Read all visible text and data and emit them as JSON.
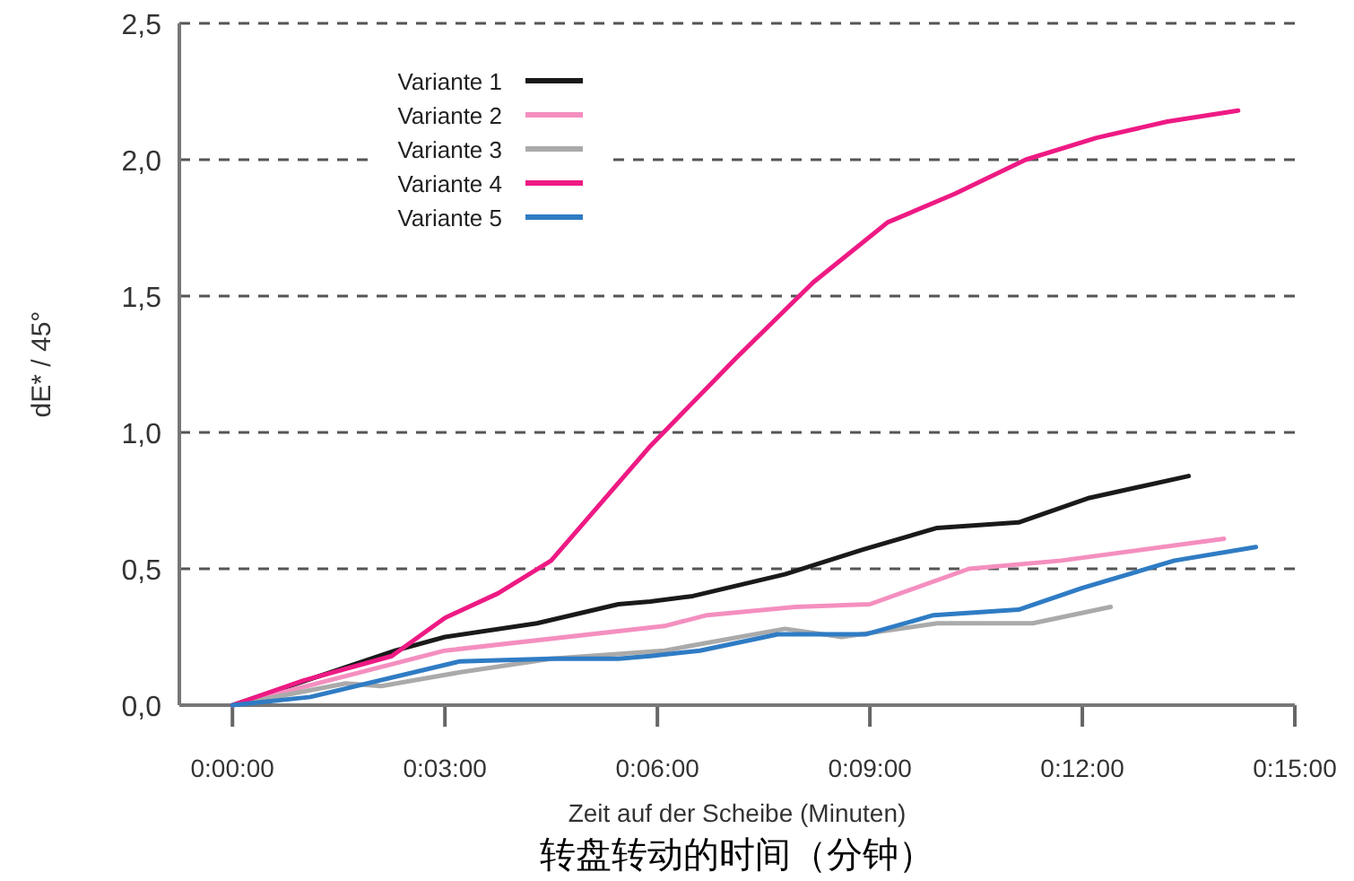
{
  "chart_data": {
    "type": "line",
    "xlabel": "Zeit auf der Scheibe (Minuten)",
    "ylabel": "dE* / 45°",
    "annotations": [
      "转盘转动的时间（分钟）"
    ],
    "xlim": [
      -0.75,
      15
    ],
    "ylim": [
      0,
      2.5
    ],
    "xticks": [
      {
        "value": 0,
        "label": "0:00:00"
      },
      {
        "value": 3,
        "label": "0:03:00"
      },
      {
        "value": 6,
        "label": "0:06:00"
      },
      {
        "value": 9,
        "label": "0:09:00"
      },
      {
        "value": 12,
        "label": "0:12:00"
      },
      {
        "value": 15,
        "label": "0:15:00"
      }
    ],
    "yticks": [
      {
        "value": 0,
        "label": "0,0"
      },
      {
        "value": 0.5,
        "label": "0,5"
      },
      {
        "value": 1,
        "label": "1,0"
      },
      {
        "value": 1.5,
        "label": "1,5"
      },
      {
        "value": 2,
        "label": "2,0"
      },
      {
        "value": 2.5,
        "label": "2,5"
      }
    ],
    "grid": "y",
    "legend": "top left",
    "marker": "none",
    "line_style": "solid",
    "series": [
      {
        "name": "Variante 1",
        "color": "#1a1a1a",
        "x": [
          0,
          2.3,
          3.0,
          4.3,
          5.45,
          5.9,
          6.5,
          7.8,
          8.9,
          9.95,
          11.1,
          12.1,
          13.5
        ],
        "values": [
          0,
          0.2,
          0.25,
          0.3,
          0.37,
          0.38,
          0.4,
          0.48,
          0.57,
          0.65,
          0.67,
          0.76,
          0.84
        ]
      },
      {
        "name": "Variante 2",
        "color": "#f48fbf",
        "x": [
          0,
          3.0,
          6.1,
          6.7,
          7.95,
          9.0,
          10.4,
          11.7,
          14.0
        ],
        "values": [
          0,
          0.2,
          0.29,
          0.33,
          0.36,
          0.37,
          0.5,
          0.53,
          0.61
        ]
      },
      {
        "name": "Variante 3",
        "color": "#aaaaaa",
        "x": [
          0,
          1.6,
          2.1,
          3.2,
          4.5,
          6.1,
          7.8,
          8.6,
          9.95,
          11.3,
          12.4
        ],
        "values": [
          0,
          0.08,
          0.07,
          0.12,
          0.17,
          0.2,
          0.28,
          0.25,
          0.3,
          0.3,
          0.36
        ]
      },
      {
        "name": "Variante 4",
        "color": "#ee1a84",
        "x": [
          0,
          1.0,
          2.25,
          3.0,
          3.75,
          4.5,
          5.9,
          7.1,
          8.2,
          9.25,
          10.2,
          11.2,
          12.2,
          13.2,
          14.2
        ],
        "values": [
          0,
          0.09,
          0.18,
          0.32,
          0.41,
          0.53,
          0.95,
          1.27,
          1.55,
          1.77,
          1.875,
          2.0,
          2.08,
          2.14,
          2.18
        ]
      },
      {
        "name": "Variante 5",
        "color": "#2f7cc4",
        "x": [
          0,
          1.1,
          3.2,
          4.5,
          5.45,
          5.9,
          6.6,
          7.7,
          8.95,
          9.9,
          11.1,
          12.0,
          13.3,
          14.45
        ],
        "values": [
          0,
          0.03,
          0.16,
          0.17,
          0.17,
          0.18,
          0.2,
          0.26,
          0.26,
          0.33,
          0.35,
          0.43,
          0.53,
          0.58
        ]
      }
    ]
  }
}
